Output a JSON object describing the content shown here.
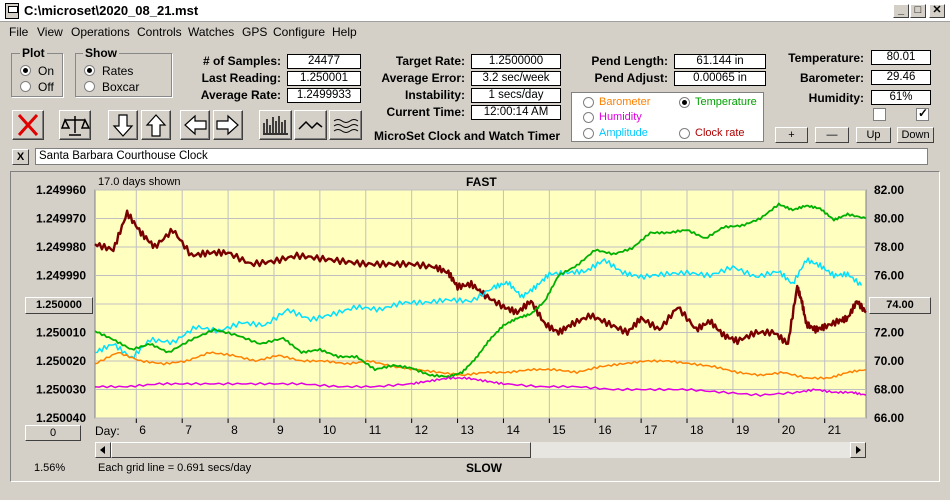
{
  "window": {
    "title": "C:\\microset\\2020_08_21.mst"
  },
  "menu": [
    "File",
    "View",
    "Operations",
    "Controls",
    "Watches",
    "GPS",
    "Configure",
    "Help"
  ],
  "plot": {
    "title": "Plot",
    "on": "On",
    "off": "Off",
    "selected": "On"
  },
  "show": {
    "title": "Show",
    "rates": "Rates",
    "boxcar": "Boxcar",
    "selected": "Rates"
  },
  "stats": {
    "samples_label": "# of Samples:",
    "samples": "24477",
    "last_label": "Last Reading:",
    "last": "1.250001",
    "avg_label": "Average Rate:",
    "avg": "1.2499933",
    "target_label": "Target Rate:",
    "target": "1.2500000",
    "avgerr_label": "Average Error:",
    "avgerr": "3.2 sec/week",
    "instab_label": "Instability:",
    "instab": "1 secs/day",
    "time_label": "Current Time:",
    "time": "12:00:14 AM",
    "pendlen_label": "Pend Length:",
    "pendlen": "61.144 in",
    "pendadj_label": "Pend Adjust:",
    "pendadj": "0.00065 in",
    "temp_label": "Temperature:",
    "temp": "80.01",
    "baro_label": "Barometer:",
    "baro": "29.46",
    "hum_label": "Humidity:",
    "hum": "61%"
  },
  "app_title": "MicroSet Clock and Watch Timer",
  "series_select": {
    "barometer": "Barometer",
    "humidity": "Humidity",
    "amplitude": "Amplitude",
    "temperature": "Temperature",
    "clockrate": "Clock rate",
    "selected": "Temperature"
  },
  "ctrl_buttons": {
    "plus": "+",
    "minus": "—",
    "up": "Up",
    "down": "Down"
  },
  "clock_name": "Santa Barbara Courthouse Clock",
  "clear_label": "X",
  "colors": {
    "barometer": "#ff8000",
    "humidity": "#e000e0",
    "amplitude": "#00e0ff",
    "temperature": "#00b000",
    "clockrate": "#b00000",
    "rate": "#7a0000",
    "plotbg": "#ffffc0"
  },
  "chart_data": {
    "type": "line",
    "top_label": "FAST",
    "bottom_label": "SLOW",
    "days_shown": "17.0 days shown",
    "grid_note": "Each grid line = 0.691 secs/day",
    "percent": "1.56%",
    "x_label": "Day:",
    "x_ticks": [
      "6",
      "7",
      "8",
      "9",
      "10",
      "11",
      "12",
      "13",
      "14",
      "15",
      "16",
      "17",
      "18",
      "19",
      "20",
      "21"
    ],
    "y_left_ticks": [
      "1.249960",
      "1.249970",
      "1.249980",
      "1.249990",
      "1.250000",
      "1.250010",
      "1.250020",
      "1.250030",
      "1.250040"
    ],
    "y_right_ticks": [
      "82.00",
      "80.00",
      "78.00",
      "76.00",
      "74.00",
      "72.00",
      "70.00",
      "68.00",
      "66.00"
    ],
    "y_left_range": [
      1.24996,
      1.25004
    ],
    "y_right_range": [
      66,
      82
    ],
    "left_button": "0",
    "x_range": [
      5.1,
      21.9
    ],
    "series": [
      {
        "key": "rate",
        "width": 2.4,
        "x": [
          5.1,
          5.5,
          5.8,
          6.1,
          6.4,
          6.8,
          7.2,
          7.6,
          8.0,
          8.5,
          9.0,
          9.5,
          10.0,
          10.5,
          11.0,
          11.5,
          12.0,
          12.5,
          12.8,
          13.0,
          13.3,
          13.6,
          14.0,
          14.3,
          14.6,
          14.9,
          15.2,
          15.5,
          15.9,
          16.3,
          16.7,
          17.0,
          17.4,
          17.8,
          18.2,
          18.5,
          18.8,
          19.1,
          19.5,
          19.9,
          20.2,
          20.4,
          20.5,
          20.6,
          20.8,
          21.0,
          21.3,
          21.5,
          21.7,
          21.9
        ],
        "y": [
          1.249979,
          1.249981,
          1.249968,
          1.249975,
          1.24998,
          1.249974,
          1.249983,
          1.249982,
          1.249982,
          1.249986,
          1.249985,
          1.249983,
          1.249984,
          1.249985,
          1.249986,
          1.249986,
          1.249986,
          1.249987,
          1.249989,
          1.249994,
          1.249993,
          1.249997,
          1.250001,
          1.250003,
          1.249999,
          1.250007,
          1.25001,
          1.250007,
          1.250004,
          1.250007,
          1.25001,
          1.250005,
          1.250009,
          1.250001,
          1.250009,
          1.250006,
          1.250011,
          1.250013,
          1.25001,
          1.25001,
          1.250014,
          1.249994,
          1.249999,
          1.250007,
          1.250009,
          1.250008,
          1.250006,
          1.250005,
          1.249999,
          1.250003
        ]
      },
      {
        "key": "amplitude",
        "width": 1.5,
        "x": [
          5.1,
          5.5,
          5.9,
          6.3,
          6.8,
          7.3,
          7.8,
          8.3,
          8.8,
          9.3,
          9.8,
          10.3,
          10.8,
          11.3,
          11.8,
          12.3,
          12.8,
          13.3,
          13.8,
          14.1,
          14.4,
          14.7,
          15.0,
          15.4,
          15.8,
          16.2,
          16.6,
          17.0,
          17.5,
          18.0,
          18.5,
          19.0,
          19.5,
          20.0,
          20.3,
          20.6,
          20.9,
          21.2,
          21.5,
          21.8
        ],
        "y": [
          70.6,
          71.2,
          70.2,
          71.5,
          71.3,
          72.4,
          72.1,
          72.7,
          72.5,
          73.6,
          72.9,
          73.3,
          73.8,
          73.6,
          74.1,
          74.1,
          74.3,
          74.2,
          75.2,
          75.5,
          74.5,
          75.2,
          76.1,
          76.2,
          76.3,
          77.1,
          76.2,
          75.9,
          76.1,
          76.2,
          76.0,
          76.6,
          75.9,
          76.3,
          75.4,
          77.1,
          76.7,
          76.0,
          76.1,
          75.3
        ]
      },
      {
        "key": "barometer",
        "width": 1.5,
        "x": [
          5.1,
          5.6,
          6.1,
          6.6,
          7.1,
          7.6,
          8.1,
          8.6,
          9.1,
          9.6,
          10.1,
          10.6,
          11.1,
          11.6,
          12.1,
          12.6,
          13.1,
          13.6,
          14.1,
          14.6,
          15.1,
          15.6,
          16.1,
          16.6,
          17.1,
          17.6,
          18.1,
          18.6,
          19.1,
          19.6,
          20.1,
          20.6,
          21.1,
          21.5,
          21.9
        ],
        "y": [
          1.250021,
          1.250017,
          1.25002,
          1.250021,
          1.25002,
          1.250017,
          1.250018,
          1.25002,
          1.250018,
          1.25002,
          1.25002,
          1.250021,
          1.25002,
          1.250022,
          1.250023,
          1.250024,
          1.250025,
          1.250024,
          1.250024,
          1.250023,
          1.250023,
          1.250024,
          1.250022,
          1.250021,
          1.25002,
          1.25002,
          1.250021,
          1.250022,
          1.250024,
          1.250025,
          1.250024,
          1.250026,
          1.250026,
          1.250024,
          1.250023
        ]
      },
      {
        "key": "temperature",
        "width": 1.8,
        "x": [
          5.1,
          5.5,
          5.9,
          6.3,
          6.7,
          7.2,
          7.7,
          8.2,
          8.7,
          9.2,
          9.6,
          10.0,
          10.4,
          10.8,
          11.2,
          11.6,
          12.0,
          12.4,
          12.8,
          13.1,
          13.4,
          13.7,
          14.0,
          14.3,
          14.6,
          14.9,
          15.2,
          15.6,
          16.0,
          16.4,
          16.8,
          17.2,
          17.6,
          18.0,
          18.4,
          18.8,
          19.2,
          19.6,
          20.0,
          20.3,
          20.6,
          20.9,
          21.2,
          21.5,
          21.9
        ],
        "y": [
          72.1,
          71.5,
          70.8,
          71.2,
          70.6,
          71.5,
          72.2,
          71.8,
          71.2,
          71.6,
          70.6,
          70.8,
          70.3,
          70.3,
          69.4,
          69.7,
          69.5,
          69.0,
          68.9,
          69.2,
          70.2,
          71.5,
          72.5,
          73.0,
          73.3,
          74.2,
          76.0,
          76.7,
          77.8,
          77.5,
          77.9,
          79.0,
          79.0,
          79.2,
          78.6,
          79.4,
          79.5,
          80.0,
          81.0,
          80.6,
          80.9,
          80.7,
          79.9,
          80.3,
          80.0
        ]
      },
      {
        "key": "humidity",
        "width": 1.5,
        "x": [
          5.1,
          5.8,
          6.5,
          7.2,
          8.0,
          8.8,
          9.6,
          10.4,
          11.2,
          12.0,
          12.4,
          12.8,
          13.2,
          13.6,
          14.0,
          14.8,
          15.6,
          16.4,
          17.2,
          18.0,
          18.8,
          19.6,
          20.4,
          20.8,
          21.2,
          21.6,
          21.9
        ],
        "y": [
          1.250029,
          1.250029,
          1.250028,
          1.250028,
          1.250028,
          1.250028,
          1.250028,
          1.250029,
          1.250029,
          1.250028,
          1.250027,
          1.250026,
          1.250026,
          1.250027,
          1.250028,
          1.250029,
          1.250029,
          1.25003,
          1.25003,
          1.25003,
          1.250031,
          1.250032,
          1.250031,
          1.25003,
          1.250031,
          1.250031,
          1.250032
        ]
      }
    ]
  }
}
